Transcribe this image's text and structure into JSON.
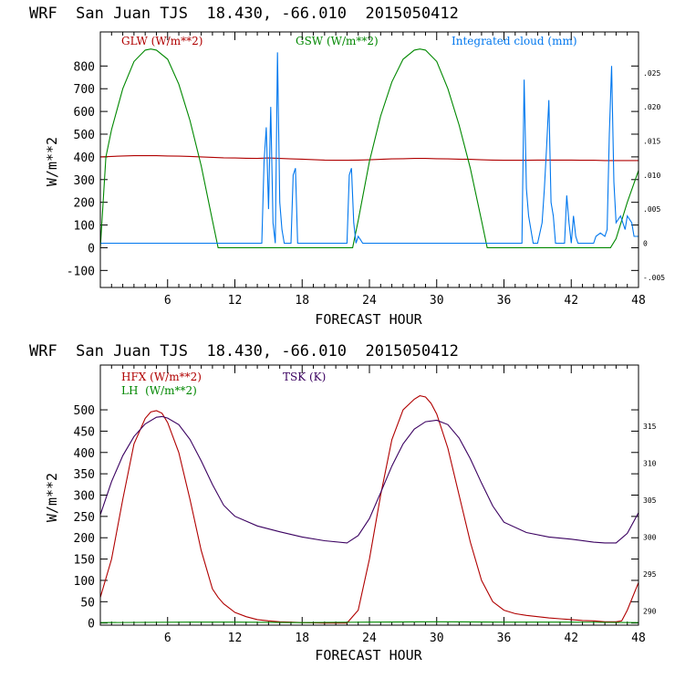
{
  "colors": {
    "red": "#b00000",
    "green": "#008800",
    "blue": "#0077ee",
    "purple": "#3a0060",
    "frame": "#000000"
  },
  "chart_data": [
    {
      "type": "line",
      "title": "WRF  San Juan TJS  18.430, -66.010  2015050412",
      "xlabel": "FORECAST HOUR",
      "ylabel": "W/m**2",
      "xlim": [
        0,
        48
      ],
      "ylim": [
        -175,
        950
      ],
      "y2lim": [
        -0.0065,
        0.031
      ],
      "xticks": [
        "6",
        "12",
        "18",
        "24",
        "30",
        "36",
        "42",
        "48"
      ],
      "yticks": [
        "-100",
        "0",
        "100",
        "200",
        "300",
        "400",
        "500",
        "600",
        "700",
        "800"
      ],
      "y2ticks": [
        "-.005",
        "0",
        ".005",
        ".010",
        ".015",
        ".020",
        ".025"
      ],
      "series": [
        {
          "name": "GLW (W/m**2)",
          "axis": "left",
          "x": [
            0,
            1,
            2,
            3,
            4,
            5,
            6,
            7,
            8,
            9,
            10,
            11,
            12,
            13,
            14,
            15,
            16,
            17,
            18,
            19,
            20,
            21,
            22,
            23,
            24,
            25,
            26,
            27,
            28,
            29,
            30,
            31,
            32,
            33,
            34,
            35,
            36,
            37,
            38,
            39,
            40,
            41,
            42,
            43,
            44,
            45,
            46,
            47,
            48
          ],
          "y": [
            400,
            402,
            404,
            405,
            405,
            405,
            404,
            403,
            402,
            400,
            398,
            396,
            395,
            394,
            393,
            395,
            393,
            391,
            390,
            388,
            386,
            385,
            385,
            386,
            387,
            389,
            391,
            392,
            393,
            393,
            392,
            391,
            390,
            389,
            387,
            386,
            385,
            385,
            385,
            386,
            386,
            386,
            386,
            385,
            385,
            384,
            384,
            384,
            384
          ]
        },
        {
          "name": "GSW (W/m**2)",
          "axis": "left",
          "x": [
            0,
            0.5,
            1,
            2,
            3,
            4,
            4.5,
            5,
            6,
            7,
            8,
            9,
            10,
            10.5,
            11,
            22,
            22.5,
            23,
            24,
            25,
            26,
            27,
            28,
            28.5,
            29,
            30,
            31,
            32,
            33,
            34,
            34.5,
            35,
            45.5,
            46,
            47,
            48
          ],
          "y": [
            0,
            400,
            520,
            700,
            820,
            870,
            875,
            870,
            830,
            720,
            560,
            360,
            120,
            0,
            0,
            0,
            0,
            120,
            380,
            580,
            730,
            830,
            870,
            875,
            870,
            820,
            700,
            540,
            350,
            120,
            0,
            0,
            0,
            40,
            200,
            340
          ]
        },
        {
          "name": "Integrated cloud (mm)",
          "axis": "right",
          "x": [
            0,
            14.4,
            14.6,
            14.8,
            15,
            15.2,
            15.4,
            15.6,
            15.8,
            16,
            16.2,
            16.4,
            16.6,
            17,
            17.2,
            17.4,
            17.6,
            18,
            22,
            22.2,
            22.4,
            22.6,
            22.8,
            23,
            23.2,
            23.4,
            23.6,
            24,
            37.6,
            37.8,
            38,
            38.2,
            38.4,
            38.6,
            38.8,
            39,
            39.4,
            39.6,
            39.8,
            40,
            40.2,
            40.4,
            40.6,
            40.8,
            41,
            41.4,
            41.6,
            41.8,
            42,
            42.2,
            42.4,
            42.6,
            44,
            44.2,
            44.6,
            45,
            45.2,
            45.4,
            45.6,
            45.8,
            46,
            46.4,
            46.8,
            47,
            47.4,
            47.6,
            48
          ],
          "y": [
            0,
            0,
            0.012,
            0.017,
            0.005,
            0.02,
            0.003,
            0,
            0.028,
            0.006,
            0.002,
            0,
            0,
            0,
            0.01,
            0.011,
            0,
            0,
            0,
            0.01,
            0.011,
            0.003,
            0,
            0.001,
            0.0005,
            0,
            0,
            0,
            0,
            0.024,
            0.008,
            0.004,
            0.002,
            0,
            0,
            0,
            0.003,
            0.008,
            0.014,
            0.021,
            0.006,
            0.004,
            0,
            0,
            0,
            0,
            0.007,
            0.003,
            0,
            0.004,
            0.001,
            0,
            0,
            0.001,
            0.0015,
            0.001,
            0.002,
            0.016,
            0.026,
            0.009,
            0.003,
            0.004,
            0.002,
            0.004,
            0.003,
            0.001,
            0.001
          ]
        }
      ]
    },
    {
      "type": "line",
      "title": "WRF  San Juan TJS  18.430, -66.010  2015050412",
      "xlabel": "FORECAST HOUR",
      "ylabel": "W/m**2",
      "xlim": [
        0,
        48
      ],
      "ylim": [
        -5,
        605
      ],
      "y2lim": [
        288.07,
        323.27
      ],
      "xticks": [
        "6",
        "12",
        "18",
        "24",
        "30",
        "36",
        "42",
        "48"
      ],
      "yticks": [
        "0",
        "50",
        "100",
        "150",
        "200",
        "250",
        "300",
        "350",
        "400",
        "450",
        "500"
      ],
      "y2ticks": [
        "290",
        "295",
        "300",
        "305",
        "310",
        "315"
      ],
      "series": [
        {
          "name": "HFX (W/m**2)",
          "axis": "left",
          "x": [
            0,
            1,
            2,
            3,
            4,
            4.5,
            5,
            5.5,
            6,
            7,
            8,
            9,
            10,
            10.5,
            11,
            12,
            13,
            14,
            15,
            16,
            17,
            18,
            20,
            21,
            22,
            23,
            24,
            25,
            26,
            27,
            28,
            28.5,
            29,
            29.5,
            30,
            31,
            32,
            33,
            34,
            35,
            36,
            37,
            38,
            39,
            40,
            41,
            42,
            43,
            44,
            45,
            46,
            46.5,
            47,
            48
          ],
          "y": [
            60,
            150,
            290,
            420,
            480,
            495,
            498,
            492,
            470,
            400,
            290,
            170,
            80,
            60,
            45,
            25,
            15,
            8,
            5,
            3,
            2,
            1,
            0,
            0,
            0,
            30,
            150,
            300,
            430,
            500,
            525,
            533,
            530,
            515,
            490,
            410,
            300,
            190,
            100,
            50,
            30,
            22,
            18,
            15,
            12,
            10,
            8,
            6,
            5,
            3,
            3,
            5,
            30,
            95
          ]
        },
        {
          "name": "LH  (W/m**2)",
          "axis": "left",
          "x": [
            0,
            8,
            12,
            18,
            24,
            30,
            36,
            42,
            48
          ],
          "y": [
            1,
            2,
            2,
            1,
            2,
            3,
            2,
            2,
            1
          ]
        },
        {
          "name": "TSK (K)",
          "axis": "right",
          "x": [
            0,
            1,
            2,
            3,
            4,
            5,
            5.5,
            6,
            7,
            8,
            9,
            10,
            11,
            12,
            14,
            16,
            18,
            20,
            22,
            23,
            24,
            25,
            26,
            27,
            28,
            29,
            30,
            31,
            32,
            33,
            34,
            35,
            36,
            38,
            40,
            42,
            44,
            45,
            46,
            47,
            48
          ],
          "y": [
            303.0,
            307.5,
            311.0,
            313.6,
            315.3,
            316.2,
            316.3,
            316.1,
            315.2,
            313.2,
            310.3,
            307.1,
            304.3,
            302.8,
            301.5,
            300.7,
            300.0,
            299.5,
            299.2,
            300.2,
            302.5,
            306.0,
            309.6,
            312.6,
            314.6,
            315.6,
            315.8,
            315.2,
            313.4,
            310.6,
            307.3,
            304.2,
            302.0,
            300.6,
            300.0,
            299.7,
            299.3,
            299.2,
            299.2,
            300.5,
            303.3
          ]
        }
      ]
    }
  ]
}
